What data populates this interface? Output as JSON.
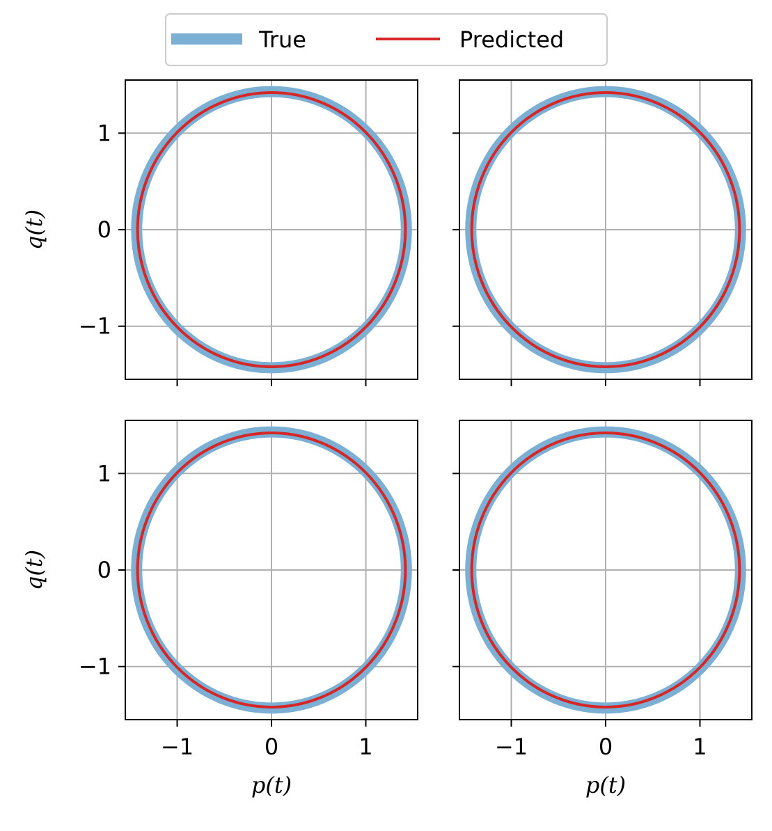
{
  "legend": {
    "entries": [
      {
        "label": "True",
        "color": "#7bafd4"
      },
      {
        "label": "Predicted",
        "color": "#d62728"
      }
    ],
    "placement": "top-center",
    "ncol": 2
  },
  "chart_data": [
    {
      "type": "line",
      "panel": "top-left",
      "xlabel": "",
      "ylabel": "q(t)",
      "xlim": [
        -1.55,
        1.55
      ],
      "ylim": [
        -1.55,
        1.55
      ],
      "xticks": [
        -1,
        0,
        1
      ],
      "yticks": [
        -1,
        0,
        1
      ],
      "xticklabels": [
        "",
        "",
        ""
      ],
      "yticklabels": [
        "−1",
        "0",
        "1"
      ],
      "grid": true,
      "series": [
        {
          "name": "True",
          "shape": "circle",
          "center": [
            0,
            0
          ],
          "radius": 1.43
        },
        {
          "name": "Predicted",
          "shape": "circle",
          "center": [
            0,
            0
          ],
          "radius": 1.42
        }
      ]
    },
    {
      "type": "line",
      "panel": "top-right",
      "xlabel": "",
      "ylabel": "",
      "xlim": [
        -1.55,
        1.55
      ],
      "ylim": [
        -1.55,
        1.55
      ],
      "xticks": [
        -1,
        0,
        1
      ],
      "yticks": [
        -1,
        0,
        1
      ],
      "xticklabels": [
        "",
        "",
        ""
      ],
      "yticklabels": [
        "",
        "",
        ""
      ],
      "grid": true,
      "series": [
        {
          "name": "True",
          "shape": "circle",
          "center": [
            0,
            0
          ],
          "radius": 1.43
        },
        {
          "name": "Predicted",
          "shape": "circle",
          "center": [
            0,
            0
          ],
          "radius": 1.42
        }
      ]
    },
    {
      "type": "line",
      "panel": "bottom-left",
      "xlabel": "p(t)",
      "ylabel": "q(t)",
      "xlim": [
        -1.55,
        1.55
      ],
      "ylim": [
        -1.55,
        1.55
      ],
      "xticks": [
        -1,
        0,
        1
      ],
      "yticks": [
        -1,
        0,
        1
      ],
      "xticklabels": [
        "−1",
        "0",
        "1"
      ],
      "yticklabels": [
        "−1",
        "0",
        "1"
      ],
      "grid": true,
      "series": [
        {
          "name": "True",
          "shape": "circle",
          "center": [
            0,
            0
          ],
          "radius": 1.43
        },
        {
          "name": "Predicted",
          "shape": "circle",
          "center": [
            0,
            0
          ],
          "radius": 1.42
        }
      ]
    },
    {
      "type": "line",
      "panel": "bottom-right",
      "xlabel": "p(t)",
      "ylabel": "",
      "xlim": [
        -1.55,
        1.55
      ],
      "ylim": [
        -1.55,
        1.55
      ],
      "xticks": [
        -1,
        0,
        1
      ],
      "yticks": [
        -1,
        0,
        1
      ],
      "xticklabels": [
        "−1",
        "0",
        "1"
      ],
      "yticklabels": [
        "",
        "",
        ""
      ],
      "grid": true,
      "series": [
        {
          "name": "True",
          "shape": "circle",
          "center": [
            0,
            0
          ],
          "radius": 1.43
        },
        {
          "name": "Predicted",
          "shape": "circle",
          "center": [
            0,
            0
          ],
          "radius": 1.42
        }
      ]
    }
  ]
}
